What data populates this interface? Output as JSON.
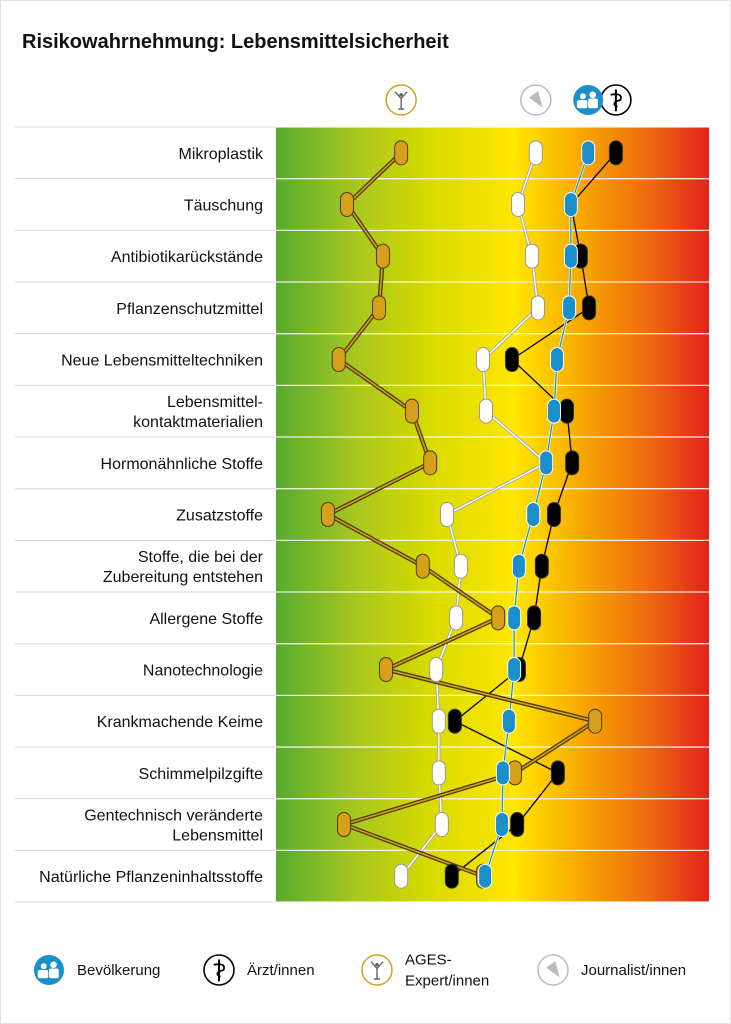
{
  "chart_data": {
    "type": "parallel-dot",
    "title": "Risikowahrnehmung: Lebensmittelsicherheit",
    "scale_note_colors": [
      "#57ab2f",
      "#d4d900",
      "#ffe600",
      "#f8a800",
      "#e2231a"
    ],
    "categories": [
      [
        "Mikroplastik"
      ],
      [
        "Täuschung"
      ],
      [
        "Antibiotikarückstände"
      ],
      [
        "Pflanzenschutzmittel"
      ],
      [
        "Neue Lebensmitteltechniken"
      ],
      [
        "Lebensmittel-",
        "kontaktmaterialien"
      ],
      [
        "Hormonähnliche Stoffe"
      ],
      [
        "Zusatzstoffe"
      ],
      [
        "Stoffe, die bei der",
        "Zubereitung entstehen"
      ],
      [
        "Allergene Stoffe"
      ],
      [
        "Nanotechnologie"
      ],
      [
        "Krankmachende Keime"
      ],
      [
        "Schimmelpilzgifte"
      ],
      [
        "Gentechnisch veränderte",
        "Lebensmittel"
      ],
      [
        "Natürliche Pflanzeninhaltsstoffe"
      ]
    ],
    "xlim": [
      0,
      1
    ],
    "series": [
      {
        "name": "Journalist/innen",
        "key": "journalist",
        "color": "#ffffff",
        "icon": "pencil-icon",
        "values": [
          0.6,
          0.559,
          0.591,
          0.605,
          0.478,
          0.485,
          0.624,
          0.395,
          0.427,
          0.416,
          0.37,
          0.376,
          0.376,
          0.383,
          0.289
        ]
      },
      {
        "name": "Ärzt/innen",
        "key": "aerzte",
        "color": "#000000",
        "icon": "caduceus-icon",
        "values": [
          0.785,
          0.681,
          0.704,
          0.723,
          0.545,
          0.672,
          0.684,
          0.642,
          0.614,
          0.596,
          0.561,
          0.413,
          0.651,
          0.557,
          0.406
        ]
      },
      {
        "name": "Bevölkerung",
        "key": "bevoelkerung",
        "color": "#1a8fc9",
        "icon": "people-icon",
        "values": [
          0.721,
          0.681,
          0.681,
          0.677,
          0.649,
          0.642,
          0.624,
          0.594,
          0.561,
          0.55,
          0.55,
          0.538,
          0.524,
          0.522,
          0.483
        ]
      },
      {
        "name": "AGES-Expert/innen",
        "key": "ages",
        "color": "#d6a01a",
        "icon": "expert-figure-icon",
        "values": [
          0.289,
          0.164,
          0.247,
          0.238,
          0.145,
          0.314,
          0.356,
          0.12,
          0.339,
          0.513,
          0.254,
          0.737,
          0.552,
          0.157,
          0.478
        ]
      }
    ],
    "legend": {
      "placement": "bottom",
      "items": [
        {
          "key": "bevoelkerung",
          "lines": [
            "Bevölkerung"
          ]
        },
        {
          "key": "aerzte",
          "lines": [
            "Ärzt/innen"
          ]
        },
        {
          "key": "ages",
          "lines": [
            "AGES-",
            "Expert/innen"
          ]
        },
        {
          "key": "journalist",
          "lines": [
            "Journalist/innen"
          ]
        }
      ]
    }
  }
}
